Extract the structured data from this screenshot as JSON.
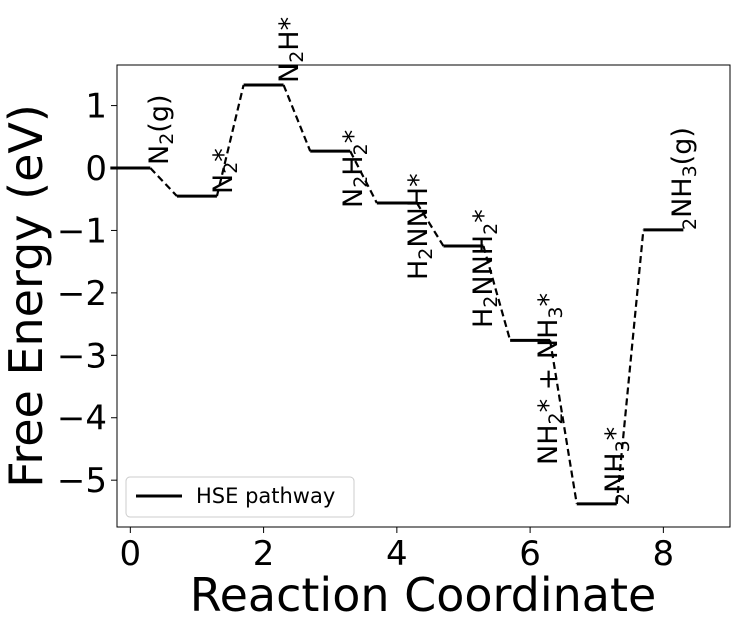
{
  "chart_data": {
    "type": "line",
    "xlabel": "Reaction Coordinate",
    "ylabel": "Free Energy (eV)",
    "xlim": [
      -0.2,
      9.0
    ],
    "ylim": [
      -5.75,
      1.65
    ],
    "xticks": [
      0,
      2,
      4,
      6,
      8
    ],
    "yticks": [
      1,
      0,
      -1,
      -2,
      -3,
      -4,
      -5
    ],
    "xtick_labels": [
      "0",
      "2",
      "4",
      "6",
      "8"
    ],
    "ytick_labels": [
      "1",
      "0",
      "−1",
      "−2",
      "−3",
      "−4",
      "−5"
    ],
    "grid": false,
    "legend_position": "lower-left",
    "series": [
      {
        "name": "HSE pathway",
        "color": "#000000",
        "levels": [
          {
            "x": 0,
            "y": 0.0,
            "label": "N2(g)"
          },
          {
            "x": 1,
            "y": -0.45,
            "label": "N2*"
          },
          {
            "x": 2,
            "y": 1.33,
            "label": "N2H*"
          },
          {
            "x": 3,
            "y": 0.27,
            "label": "N2H2*"
          },
          {
            "x": 4,
            "y": -0.56,
            "label": "H2NNH*"
          },
          {
            "x": 5,
            "y": -1.25,
            "label": "H2NNH2*"
          },
          {
            "x": 6,
            "y": -2.76,
            "label": "NH2* + NH3*"
          },
          {
            "x": 7,
            "y": -5.38,
            "label": "2NH3*"
          },
          {
            "x": 8,
            "y": -0.99,
            "label": "2NH3(g)"
          }
        ]
      }
    ]
  }
}
